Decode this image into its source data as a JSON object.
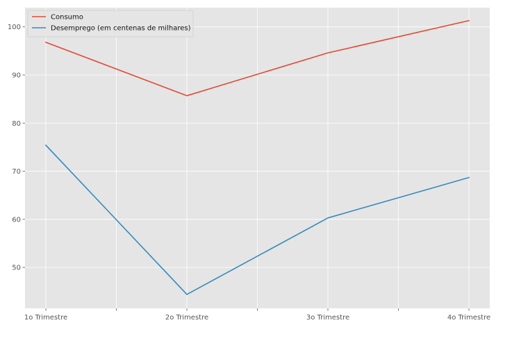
{
  "chart_data": {
    "type": "line",
    "categories": [
      "1o Trimestre",
      "2o Trimestre",
      "3o Trimestre",
      "4o Trimestre"
    ],
    "series": [
      {
        "name": "Consumo",
        "values": [
          96.8,
          85.7,
          94.6,
          101.3
        ],
        "color": "#E24A33"
      },
      {
        "name": "Desemprego (em centenas de milhares)",
        "values": [
          75.4,
          44.4,
          60.3,
          68.7
        ],
        "color": "#348ABD"
      }
    ],
    "ylim": [
      41.5,
      104
    ],
    "yticks": [
      50,
      60,
      70,
      80,
      90,
      100
    ],
    "grid": true,
    "legend_position": "top-left",
    "background_color": "#E5E5E5",
    "grid_color": "#FFFFFF"
  }
}
